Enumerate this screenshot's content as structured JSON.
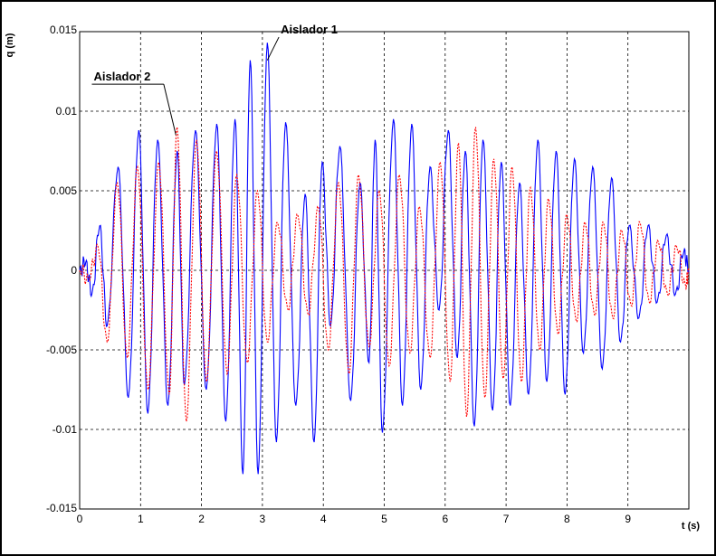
{
  "chart_data": {
    "type": "line",
    "xlabel": "t (s)",
    "ylabel": "q (m)",
    "xlim": [
      0,
      10
    ],
    "ylim": [
      -0.015,
      0.015
    ],
    "x_ticks": [
      "0",
      "1",
      "2",
      "3",
      "4",
      "5",
      "6",
      "7",
      "8",
      "9"
    ],
    "y_ticks": [
      "0.015",
      "0.01",
      "0.005",
      "0",
      "-0.005",
      "-0.01",
      "-0.015"
    ],
    "grid": true,
    "series": [
      {
        "name": "Aislador 1",
        "color": "#0000ff",
        "style": "solid",
        "peaks": [
          [
            0.0,
            0.0
          ],
          [
            0.1,
            0.0005
          ],
          [
            0.2,
            -0.0015
          ],
          [
            0.33,
            0.0028
          ],
          [
            0.45,
            -0.0035
          ],
          [
            0.63,
            0.0065
          ],
          [
            0.8,
            -0.008
          ],
          [
            0.97,
            0.0088
          ],
          [
            1.12,
            -0.009
          ],
          [
            1.28,
            0.0082
          ],
          [
            1.45,
            -0.0085
          ],
          [
            1.6,
            0.0075
          ],
          [
            1.72,
            -0.0072
          ],
          [
            1.9,
            0.0088
          ],
          [
            2.08,
            -0.0075
          ],
          [
            2.25,
            0.0092
          ],
          [
            2.4,
            -0.0095
          ],
          [
            2.55,
            0.0095
          ],
          [
            2.68,
            -0.0128
          ],
          [
            2.8,
            0.0132
          ],
          [
            2.93,
            -0.0128
          ],
          [
            3.08,
            0.0143
          ],
          [
            3.23,
            -0.0108
          ],
          [
            3.38,
            0.0093
          ],
          [
            3.55,
            -0.0085
          ],
          [
            3.7,
            0.0048
          ],
          [
            3.85,
            -0.0108
          ],
          [
            3.98,
            0.0068
          ],
          [
            4.12,
            -0.0035
          ],
          [
            4.27,
            0.0078
          ],
          [
            4.45,
            -0.0082
          ],
          [
            4.6,
            0.0055
          ],
          [
            4.75,
            -0.0058
          ],
          [
            4.85,
            0.0082
          ],
          [
            4.97,
            -0.0102
          ],
          [
            5.15,
            0.0095
          ],
          [
            5.3,
            -0.0085
          ],
          [
            5.45,
            0.0092
          ],
          [
            5.6,
            -0.0075
          ],
          [
            5.75,
            0.0065
          ],
          [
            5.9,
            -0.0025
          ],
          [
            6.05,
            0.0088
          ],
          [
            6.2,
            -0.0055
          ],
          [
            6.33,
            0.0075
          ],
          [
            6.48,
            -0.0098
          ],
          [
            6.62,
            0.0082
          ],
          [
            6.78,
            -0.0088
          ],
          [
            6.92,
            0.0068
          ],
          [
            7.07,
            -0.0085
          ],
          [
            7.22,
            0.0055
          ],
          [
            7.37,
            -0.0078
          ],
          [
            7.52,
            0.0082
          ],
          [
            7.67,
            -0.007
          ],
          [
            7.82,
            0.0075
          ],
          [
            7.97,
            -0.0078
          ],
          [
            8.12,
            0.007
          ],
          [
            8.27,
            -0.0052
          ],
          [
            8.42,
            0.0065
          ],
          [
            8.58,
            -0.0062
          ],
          [
            8.73,
            0.0058
          ],
          [
            8.88,
            -0.0045
          ],
          [
            9.02,
            0.0028
          ],
          [
            9.18,
            -0.003
          ],
          [
            9.33,
            0.0028
          ],
          [
            9.48,
            -0.002
          ],
          [
            9.63,
            0.0022
          ],
          [
            9.78,
            -0.0015
          ],
          [
            9.92,
            0.0012
          ],
          [
            10.0,
            0.0
          ]
        ]
      },
      {
        "name": "Aislador 2",
        "color": "#ff0000",
        "style": "dotted",
        "peaks": [
          [
            0.0,
            0.0
          ],
          [
            0.15,
            -0.0005
          ],
          [
            0.3,
            0.0015
          ],
          [
            0.45,
            -0.0045
          ],
          [
            0.62,
            0.0055
          ],
          [
            0.78,
            -0.0055
          ],
          [
            0.95,
            0.0065
          ],
          [
            1.12,
            -0.0075
          ],
          [
            1.3,
            0.0068
          ],
          [
            1.47,
            -0.0078
          ],
          [
            1.6,
            0.009
          ],
          [
            1.75,
            -0.0095
          ],
          [
            1.92,
            0.0082
          ],
          [
            2.08,
            -0.007
          ],
          [
            2.25,
            0.0075
          ],
          [
            2.42,
            -0.0065
          ],
          [
            2.58,
            0.006
          ],
          [
            2.75,
            -0.0058
          ],
          [
            2.92,
            0.005
          ],
          [
            3.08,
            -0.0045
          ],
          [
            3.25,
            0.003
          ],
          [
            3.42,
            -0.0025
          ],
          [
            3.58,
            0.0035
          ],
          [
            3.75,
            -0.0028
          ],
          [
            3.92,
            0.004
          ],
          [
            4.08,
            -0.005
          ],
          [
            4.25,
            0.0055
          ],
          [
            4.42,
            -0.0065
          ],
          [
            4.58,
            0.006
          ],
          [
            4.75,
            -0.0048
          ],
          [
            4.92,
            0.005
          ],
          [
            5.08,
            -0.006
          ],
          [
            5.25,
            0.006
          ],
          [
            5.42,
            -0.0052
          ],
          [
            5.58,
            0.004
          ],
          [
            5.75,
            -0.0055
          ],
          [
            5.92,
            0.0068
          ],
          [
            6.08,
            -0.007
          ],
          [
            6.22,
            0.008
          ],
          [
            6.35,
            -0.0092
          ],
          [
            6.5,
            0.009
          ],
          [
            6.65,
            -0.008
          ],
          [
            6.8,
            0.007
          ],
          [
            6.95,
            -0.0068
          ],
          [
            7.1,
            0.0065
          ],
          [
            7.25,
            -0.007
          ],
          [
            7.4,
            0.0052
          ],
          [
            7.55,
            -0.005
          ],
          [
            7.7,
            0.0045
          ],
          [
            7.85,
            -0.004
          ],
          [
            8.0,
            0.0035
          ],
          [
            8.15,
            -0.0032
          ],
          [
            8.3,
            0.003
          ],
          [
            8.45,
            -0.0028
          ],
          [
            8.6,
            0.003
          ],
          [
            8.75,
            -0.003
          ],
          [
            8.9,
            0.0025
          ],
          [
            9.05,
            -0.0022
          ],
          [
            9.2,
            0.003
          ],
          [
            9.35,
            -0.002
          ],
          [
            9.5,
            0.0018
          ],
          [
            9.65,
            -0.0015
          ],
          [
            9.8,
            0.0015
          ],
          [
            9.95,
            -0.001
          ],
          [
            10.0,
            0.0
          ]
        ]
      }
    ],
    "annotations": [
      {
        "text": "Aislador 1",
        "x": 3.3,
        "y": 0.0142
      },
      {
        "text": "Aislador 2",
        "x": 0.23,
        "y": 0.0117
      }
    ]
  }
}
